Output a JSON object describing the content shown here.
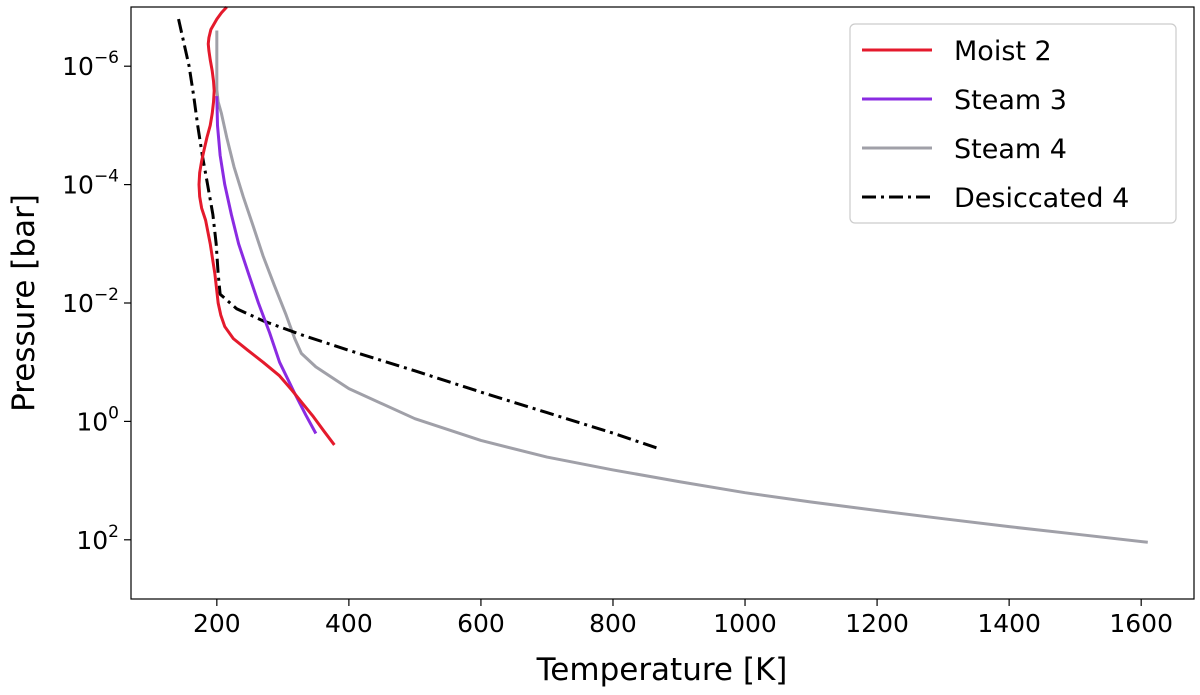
{
  "chart_data": {
    "type": "line",
    "title": "",
    "xlabel": "Temperature [K]",
    "ylabel": "Pressure [bar]",
    "xlim": [
      70,
      1680
    ],
    "ylim": [
      3e-07,
      1e-07,
      1000
    ],
    "y_scale": "log",
    "y_inverted": true,
    "x_ticks": [
      200,
      400,
      600,
      800,
      1000,
      1200,
      1400,
      1600
    ],
    "x_tick_labels": [
      "200",
      "400",
      "600",
      "800",
      "1000",
      "1200",
      "1400",
      "1600"
    ],
    "y_ticks": [
      1e-06,
      0.0001,
      0.01,
      1,
      100
    ],
    "y_tick_labels": [
      {
        "base": "10",
        "exp": "−6"
      },
      {
        "base": "10",
        "exp": "−4"
      },
      {
        "base": "10",
        "exp": "−2"
      },
      {
        "base": "10",
        "exp": "0"
      },
      {
        "base": "10",
        "exp": "2"
      }
    ],
    "grid": false,
    "legend_position": "top-right",
    "series": [
      {
        "name": "Moist 2",
        "color": "#e41a2c",
        "style": "solid",
        "points": [
          [
            215,
            1e-07
          ],
          [
            207,
            1.25e-07
          ],
          [
            200,
            1.6e-07
          ],
          [
            191,
            2.4e-07
          ],
          [
            188,
            3.3e-07
          ],
          [
            187,
            4.2e-07
          ],
          [
            188,
            5.5e-07
          ],
          [
            190,
            7.8e-07
          ],
          [
            193,
            1.2e-06
          ],
          [
            195,
            1.8e-06
          ],
          [
            196,
            2.6e-06
          ],
          [
            195,
            4e-06
          ],
          [
            193,
            6.3e-06
          ],
          [
            190,
            1e-05
          ],
          [
            185,
            1.6e-05
          ],
          [
            181,
            2.5e-05
          ],
          [
            177,
            4e-05
          ],
          [
            174,
            6.3e-05
          ],
          [
            173,
            0.0001
          ],
          [
            174,
            0.00016
          ],
          [
            177,
            0.00025
          ],
          [
            183,
            0.0004
          ],
          [
            190,
            0.001
          ],
          [
            197,
            0.0032
          ],
          [
            200,
            0.0063
          ],
          [
            202,
            0.01
          ],
          [
            206,
            0.016
          ],
          [
            212,
            0.025
          ],
          [
            225,
            0.04
          ],
          [
            247,
            0.063
          ],
          [
            270,
            0.1
          ],
          [
            295,
            0.17
          ],
          [
            314,
            0.3
          ],
          [
            330,
            0.5
          ],
          [
            345,
            0.8
          ],
          [
            363,
            1.5
          ],
          [
            378,
            2.5
          ]
        ]
      },
      {
        "name": "Steam 3",
        "color": "#8a2be2",
        "style": "solid",
        "points": [
          [
            200,
            3.2e-06
          ],
          [
            201,
            1e-05
          ],
          [
            205,
            3.2e-05
          ],
          [
            212,
            0.0001
          ],
          [
            222,
            0.00032
          ],
          [
            233,
            0.001
          ],
          [
            248,
            0.0032
          ],
          [
            263,
            0.01
          ],
          [
            280,
            0.032
          ],
          [
            295,
            0.1
          ],
          [
            317,
            0.32
          ],
          [
            335,
            0.79
          ],
          [
            350,
            1.6
          ]
        ]
      },
      {
        "name": "Steam 4",
        "color": "#a0a0a8",
        "style": "solid",
        "points": [
          [
            200,
            2.5e-07
          ],
          [
            200,
            1e-06
          ],
          [
            200,
            2.5e-06
          ],
          [
            202,
            4e-06
          ],
          [
            207,
            6.3e-06
          ],
          [
            215,
            1.6e-05
          ],
          [
            226,
            5e-05
          ],
          [
            240,
            0.00016
          ],
          [
            255,
            0.0005
          ],
          [
            270,
            0.0016
          ],
          [
            287,
            0.005
          ],
          [
            305,
            0.016
          ],
          [
            318,
            0.04
          ],
          [
            328,
            0.071
          ],
          [
            350,
            0.12
          ],
          [
            400,
            0.28
          ],
          [
            500,
            0.9
          ],
          [
            600,
            2.1
          ],
          [
            700,
            4.0
          ],
          [
            800,
            6.6
          ],
          [
            900,
            10.4
          ],
          [
            1000,
            16
          ],
          [
            1100,
            23
          ],
          [
            1200,
            32
          ],
          [
            1300,
            44
          ],
          [
            1400,
            60
          ],
          [
            1500,
            80
          ],
          [
            1610,
            110
          ]
        ]
      },
      {
        "name": "Desiccated 4",
        "color": "#000000",
        "style": "dashdot",
        "points": [
          [
            142,
            1.6e-07
          ],
          [
            150,
            4e-07
          ],
          [
            158,
            1e-06
          ],
          [
            165,
            3.2e-06
          ],
          [
            171,
            1e-05
          ],
          [
            178,
            3.2e-05
          ],
          [
            186,
            0.0001
          ],
          [
            194,
            0.00032
          ],
          [
            199,
            0.001
          ],
          [
            202,
            0.0032
          ],
          [
            205,
            0.0071
          ],
          [
            230,
            0.0125
          ],
          [
            270,
            0.02
          ],
          [
            330,
            0.035
          ],
          [
            400,
            0.063
          ],
          [
            500,
            0.14
          ],
          [
            600,
            0.32
          ],
          [
            700,
            0.71
          ],
          [
            800,
            1.58
          ],
          [
            870,
            2.9
          ]
        ]
      }
    ]
  }
}
